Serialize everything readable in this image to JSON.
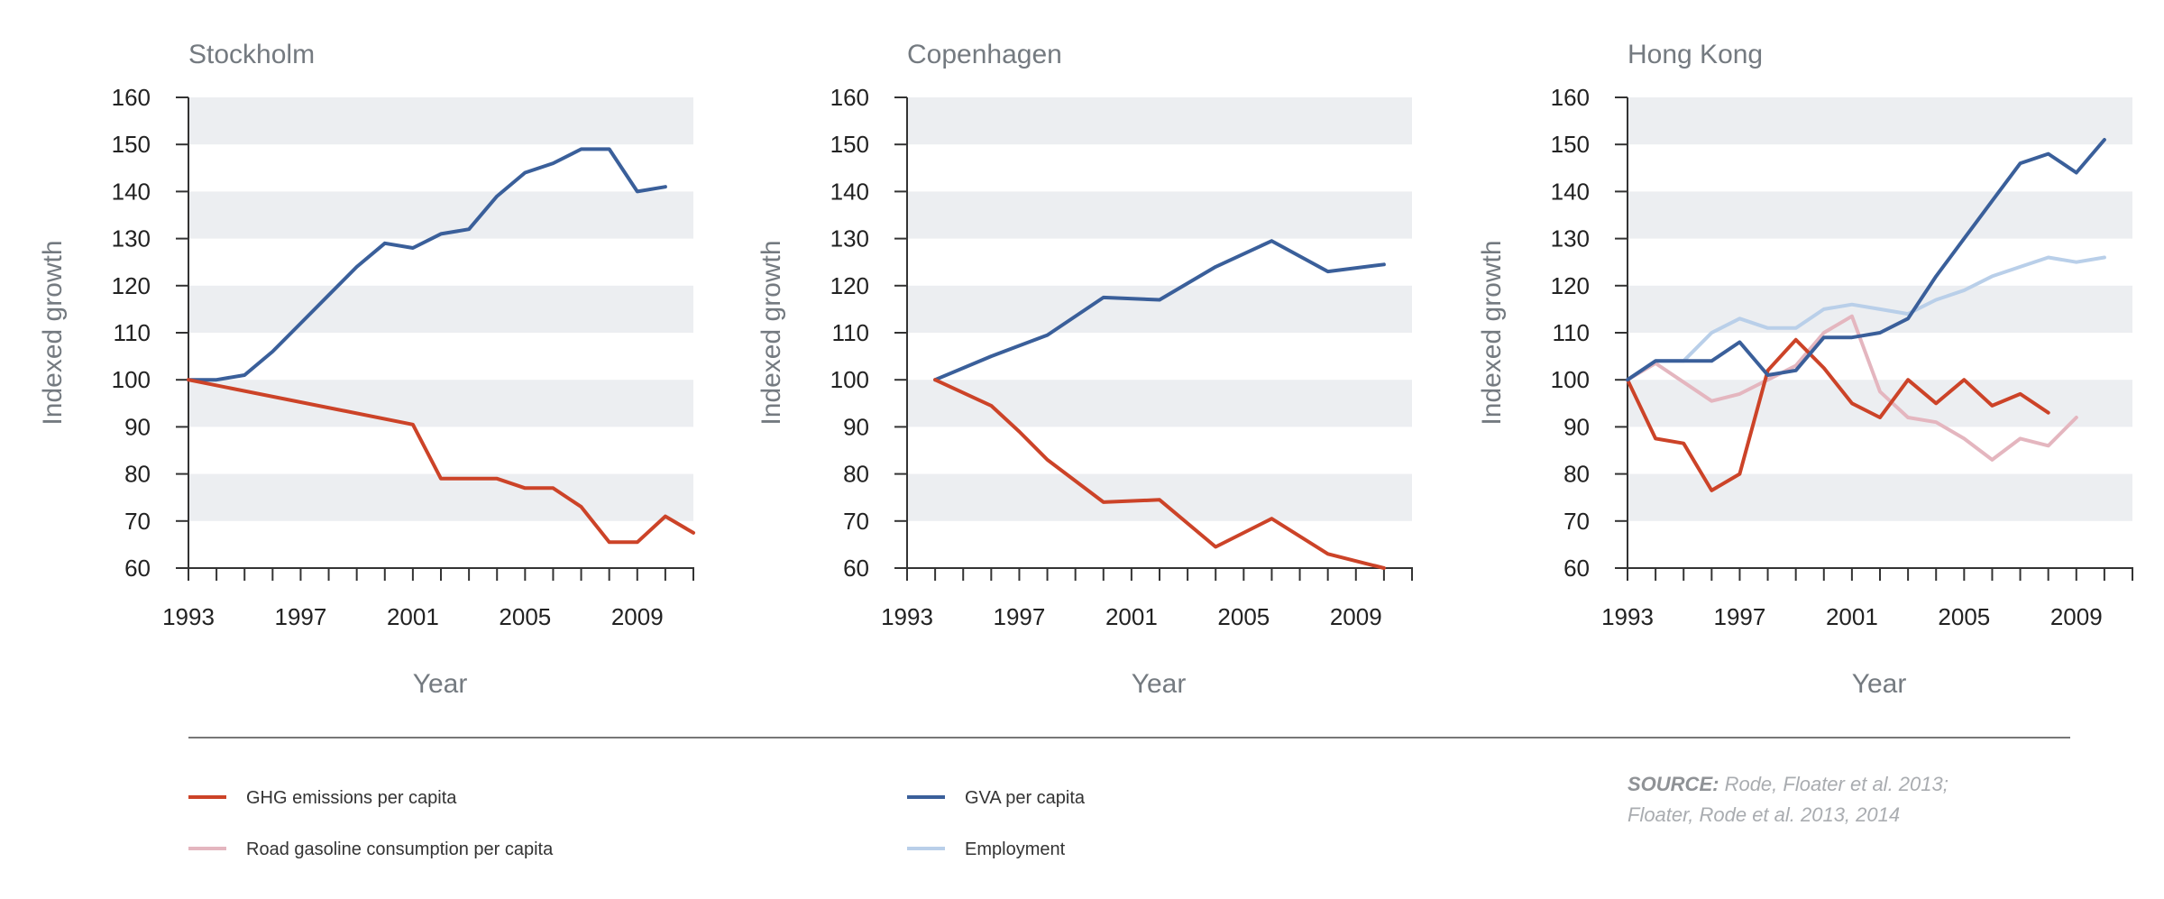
{
  "charts": [
    {
      "title": "Stockholm",
      "xlabel": "Year",
      "ylabel": "Indexed growth",
      "xlim": [
        1993,
        2011
      ],
      "ylim": [
        60,
        160
      ],
      "yticks": [
        60,
        70,
        80,
        90,
        100,
        110,
        120,
        130,
        140,
        150,
        160
      ],
      "xticks": [
        1993,
        1997,
        2001,
        2005,
        2009
      ],
      "series": [
        {
          "name": "GVA per capita",
          "color": "#3a5f9a",
          "points": [
            [
              1993,
              100
            ],
            [
              1994,
              100
            ],
            [
              1995,
              101
            ],
            [
              1996,
              106
            ],
            [
              1997,
              112
            ],
            [
              1998,
              118
            ],
            [
              1999,
              124
            ],
            [
              2000,
              129
            ],
            [
              2001,
              128
            ],
            [
              2002,
              131
            ],
            [
              2003,
              132
            ],
            [
              2004,
              139
            ],
            [
              2005,
              144
            ],
            [
              2006,
              146
            ],
            [
              2007,
              149
            ],
            [
              2008,
              149
            ],
            [
              2009,
              140
            ],
            [
              2010,
              141
            ]
          ]
        },
        {
          "name": "GHG emissions per capita",
          "color": "#cc4328",
          "points": [
            [
              1993,
              100
            ],
            [
              2001,
              90.5
            ],
            [
              2002,
              79
            ],
            [
              2003,
              79
            ],
            [
              2004,
              79
            ],
            [
              2005,
              77
            ],
            [
              2006,
              77
            ],
            [
              2007,
              73
            ],
            [
              2008,
              65.5
            ],
            [
              2009,
              65.5
            ],
            [
              2010,
              71
            ],
            [
              2011,
              67.5
            ]
          ]
        }
      ]
    },
    {
      "title": "Copenhagen",
      "xlabel": "Year",
      "ylabel": "Indexed growth",
      "xlim": [
        1993,
        2011
      ],
      "ylim": [
        60,
        160
      ],
      "yticks": [
        60,
        70,
        80,
        90,
        100,
        110,
        120,
        130,
        140,
        150,
        160
      ],
      "xticks": [
        1993,
        1997,
        2001,
        2005,
        2009
      ],
      "series": [
        {
          "name": "GVA per capita",
          "color": "#3a5f9a",
          "points": [
            [
              1994,
              100
            ],
            [
              1996,
              105
            ],
            [
              1998,
              109.5
            ],
            [
              2000,
              117.5
            ],
            [
              2002,
              117
            ],
            [
              2004,
              124
            ],
            [
              2006,
              129.5
            ],
            [
              2008,
              123
            ],
            [
              2010,
              124.5
            ]
          ]
        },
        {
          "name": "GHG emissions per capita",
          "color": "#cc4328",
          "points": [
            [
              1994,
              100
            ],
            [
              1996,
              94.5
            ],
            [
              1997,
              89
            ],
            [
              1998,
              83
            ],
            [
              2000,
              74
            ],
            [
              2002,
              74.5
            ],
            [
              2004,
              64.5
            ],
            [
              2006,
              70.5
            ],
            [
              2008,
              63
            ],
            [
              2010,
              60
            ]
          ]
        }
      ]
    },
    {
      "title": "Hong Kong",
      "xlabel": "Year",
      "ylabel": "Indexed growth",
      "xlim": [
        1993,
        2011
      ],
      "ylim": [
        60,
        160
      ],
      "yticks": [
        60,
        70,
        80,
        90,
        100,
        110,
        120,
        130,
        140,
        150,
        160
      ],
      "xticks": [
        1993,
        1997,
        2001,
        2005,
        2009
      ],
      "series": [
        {
          "name": "Employment",
          "color": "#b9cfe9",
          "points": [
            [
              1993,
              100
            ],
            [
              1994,
              104
            ],
            [
              1995,
              104
            ],
            [
              1996,
              110
            ],
            [
              1997,
              113
            ],
            [
              1998,
              111
            ],
            [
              1999,
              111
            ],
            [
              2000,
              115
            ],
            [
              2001,
              116
            ],
            [
              2002,
              115
            ],
            [
              2003,
              114
            ],
            [
              2004,
              117
            ],
            [
              2005,
              119
            ],
            [
              2006,
              122
            ],
            [
              2007,
              124
            ],
            [
              2008,
              126
            ],
            [
              2009,
              125
            ],
            [
              2010,
              126
            ]
          ]
        },
        {
          "name": "Road gasoline consumption per capita",
          "color": "#e4b6bf",
          "points": [
            [
              1993,
              100
            ],
            [
              1994,
              103.5
            ],
            [
              1995,
              99.5
            ],
            [
              1996,
              95.5
            ],
            [
              1997,
              97
            ],
            [
              1998,
              100
            ],
            [
              1999,
              103
            ],
            [
              2000,
              110
            ],
            [
              2001,
              113.5
            ],
            [
              2002,
              97.5
            ],
            [
              2003,
              92
            ],
            [
              2004,
              91
            ],
            [
              2005,
              87.5
            ],
            [
              2006,
              83
            ],
            [
              2007,
              87.5
            ],
            [
              2008,
              86
            ],
            [
              2009,
              92
            ]
          ]
        },
        {
          "name": "GHG emissions per capita",
          "color": "#cc4328",
          "points": [
            [
              1993,
              100
            ],
            [
              1994,
              87.5
            ],
            [
              1995,
              86.5
            ],
            [
              1996,
              76.5
            ],
            [
              1997,
              80
            ],
            [
              1998,
              102
            ],
            [
              1999,
              108.5
            ],
            [
              2000,
              102.5
            ],
            [
              2001,
              95
            ],
            [
              2002,
              92
            ],
            [
              2003,
              100
            ],
            [
              2004,
              95
            ],
            [
              2005,
              100
            ],
            [
              2006,
              94.5
            ],
            [
              2007,
              97
            ],
            [
              2008,
              93
            ]
          ]
        },
        {
          "name": "GVA per capita",
          "color": "#3a5f9a",
          "points": [
            [
              1993,
              100
            ],
            [
              1994,
              104
            ],
            [
              1995,
              104
            ],
            [
              1996,
              104
            ],
            [
              1997,
              108
            ],
            [
              1998,
              101
            ],
            [
              1999,
              102
            ],
            [
              2000,
              109
            ],
            [
              2001,
              109
            ],
            [
              2002,
              110
            ],
            [
              2003,
              113
            ],
            [
              2004,
              122
            ],
            [
              2005,
              130
            ],
            [
              2006,
              138
            ],
            [
              2007,
              146
            ],
            [
              2008,
              148
            ],
            [
              2009,
              144
            ],
            [
              2010,
              151
            ]
          ]
        }
      ]
    }
  ],
  "legend": [
    {
      "label": "GHG emissions per capita",
      "color": "#cc4328"
    },
    {
      "label": "GVA per capita",
      "color": "#3a5f9a"
    },
    {
      "label": "Road gasoline consumption per capita",
      "color": "#e4b6bf"
    },
    {
      "label": "Employment",
      "color": "#b9cfe9"
    }
  ],
  "source": {
    "label": "SOURCE:",
    "line1": "Rode, Floater et al. 2013;",
    "line2": "Floater, Rode et al. 2013, 2014"
  },
  "colors": {
    "band": "#eceef1",
    "axis": "#333333",
    "title_text": "#747a80",
    "tick_text": "#222222",
    "source_text": "#a9acb0"
  }
}
